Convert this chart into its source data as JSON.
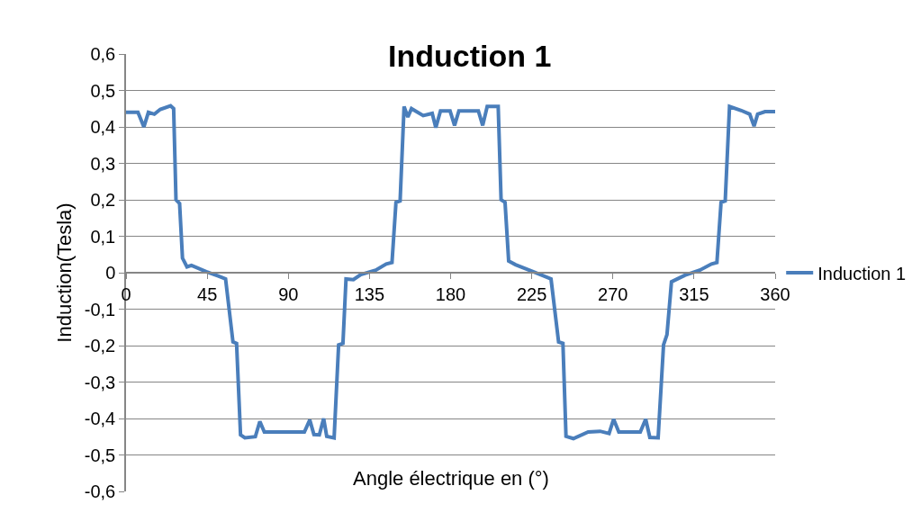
{
  "chart_data": {
    "type": "line",
    "title": "Induction 1",
    "xlabel": "Angle électrique en (°)",
    "ylabel": "Induction(Tesla)",
    "xlim": [
      0,
      360
    ],
    "xticks": [
      0,
      45,
      90,
      135,
      180,
      225,
      270,
      315,
      360
    ],
    "ylim": [
      -0.6,
      0.6
    ],
    "yticks": [
      {
        "value": -0.6,
        "label": "-0,6"
      },
      {
        "value": -0.5,
        "label": "-0,5"
      },
      {
        "value": -0.4,
        "label": "-0,4"
      },
      {
        "value": -0.3,
        "label": "-0,3"
      },
      {
        "value": -0.2,
        "label": "-0,2"
      },
      {
        "value": -0.1,
        "label": "-0,1"
      },
      {
        "value": 0,
        "label": "0"
      },
      {
        "value": 0.1,
        "label": "0,1"
      },
      {
        "value": 0.2,
        "label": "0,2"
      },
      {
        "value": 0.3,
        "label": "0,3"
      },
      {
        "value": 0.4,
        "label": "0,4"
      },
      {
        "value": 0.5,
        "label": "0,5"
      },
      {
        "value": 0.6,
        "label": "0,6"
      }
    ],
    "grid": "y",
    "legend": "right",
    "marker": "none",
    "line_style": "solid",
    "series": [
      {
        "name": "Induction 1",
        "color": "#4a7ebb",
        "x": [
          0,
          6.6,
          9.9,
          12.4,
          15.7,
          19,
          24.7,
          26.4,
          27.7,
          29.7,
          31.3,
          33.8,
          36.3,
          44.5,
          51.1,
          55.2,
          59.3,
          61.3,
          63.5,
          65.9,
          71.7,
          74.2,
          76.7,
          87.4,
          98.9,
          101.9,
          104.2,
          107.2,
          109.6,
          111.3,
          115.4,
          117.9,
          120.3,
          122,
          126.1,
          130.2,
          138.5,
          144.3,
          147.5,
          149.7,
          152,
          154.2,
          156.3,
          158.3,
          164.8,
          169.8,
          171.8,
          174.4,
          179.7,
          182.2,
          184.6,
          195.4,
          197.8,
          200.3,
          206.4,
          208,
          210.2,
          212.2,
          216,
          225.8,
          235.7,
          239.9,
          242.3,
          244,
          248.1,
          256.3,
          262.9,
          267.9,
          270.4,
          273.3,
          285.2,
          288.2,
          290.5,
          295.1,
          298.1,
          300,
          302.5,
          305.8,
          309.9,
          318.2,
          324.7,
          327.7,
          330,
          332.3,
          334.7,
          341.2,
          345.9,
          348.3,
          350.3,
          354.4,
          360
        ],
        "values": [
          0.44,
          0.44,
          0.4,
          0.44,
          0.435,
          0.448,
          0.458,
          0.45,
          0.2,
          0.19,
          0.04,
          0.016,
          0.02,
          0.003,
          -0.009,
          -0.017,
          -0.19,
          -0.194,
          -0.445,
          -0.453,
          -0.45,
          -0.408,
          -0.437,
          -0.437,
          -0.437,
          -0.404,
          -0.444,
          -0.445,
          -0.4,
          -0.449,
          -0.453,
          -0.198,
          -0.194,
          -0.017,
          -0.019,
          -0.005,
          0.007,
          0.024,
          0.028,
          0.193,
          0.197,
          0.456,
          0.427,
          0.45,
          0.431,
          0.437,
          0.398,
          0.444,
          0.444,
          0.404,
          0.444,
          0.444,
          0.404,
          0.456,
          0.456,
          0.2,
          0.193,
          0.032,
          0.022,
          0.003,
          -0.017,
          -0.19,
          -0.194,
          -0.449,
          -0.455,
          -0.437,
          -0.435,
          -0.441,
          -0.402,
          -0.437,
          -0.437,
          -0.402,
          -0.452,
          -0.453,
          -0.198,
          -0.17,
          -0.025,
          -0.017,
          -0.007,
          0.007,
          0.024,
          0.028,
          0.193,
          0.197,
          0.456,
          0.445,
          0.435,
          0.402,
          0.435,
          0.442,
          0.442
        ]
      }
    ]
  }
}
